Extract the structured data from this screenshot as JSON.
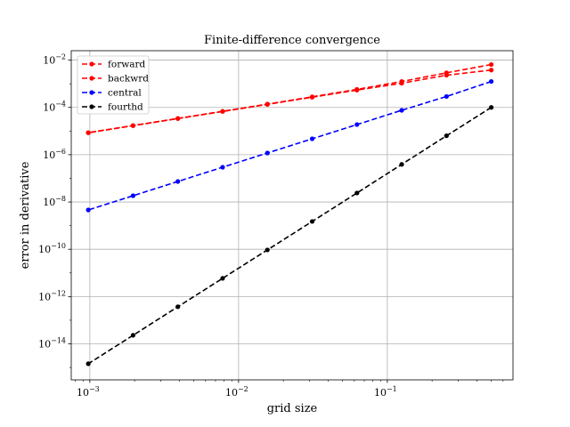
{
  "chart_data": {
    "type": "line",
    "title": "Finite-difference convergence",
    "xlabel": "grid size",
    "ylabel": "error in derivative",
    "xscale": "log",
    "yscale": "log",
    "xlim": [
      0.00075,
      0.7
    ],
    "ylim": [
      3e-16,
      0.025
    ],
    "grid": true,
    "legend_position": "upper-left",
    "x_ticks": [
      {
        "value": 0.001,
        "base": "10",
        "exp": "−3"
      },
      {
        "value": 0.01,
        "base": "10",
        "exp": "−2"
      },
      {
        "value": 0.1,
        "base": "10",
        "exp": "−1"
      }
    ],
    "y_ticks": [
      {
        "value": 1e-14,
        "base": "10",
        "exp": "−14"
      },
      {
        "value": 1e-12,
        "base": "10",
        "exp": "−12"
      },
      {
        "value": 1e-10,
        "base": "10",
        "exp": "−10"
      },
      {
        "value": 1e-08,
        "base": "10",
        "exp": "−8"
      },
      {
        "value": 1e-06,
        "base": "10",
        "exp": "−6"
      },
      {
        "value": 0.0001,
        "base": "10",
        "exp": "−4"
      },
      {
        "value": 0.01,
        "base": "10",
        "exp": "−2"
      }
    ],
    "x": [
      0.5,
      0.25,
      0.125,
      0.0625,
      0.03125,
      0.015625,
      0.0078125,
      0.00390625,
      0.001953125,
      0.0009765625
    ],
    "series": [
      {
        "name": "forward",
        "color": "#ff0000",
        "values": [
          0.0065,
          0.0029,
          0.00125,
          0.00058,
          0.00028,
          0.000138,
          6.85e-05,
          3.42e-05,
          1.71e-05,
          8.6e-06
        ]
      },
      {
        "name": "backwrd",
        "color": "#ff0000",
        "values": [
          0.0038,
          0.0023,
          0.00105,
          0.00054,
          0.00027,
          0.000134,
          6.72e-05,
          3.36e-05,
          1.69e-05,
          8.4e-06
        ]
      },
      {
        "name": "central",
        "color": "#0000ff",
        "values": [
          0.00125,
          0.00029,
          7.55e-05,
          1.88e-05,
          4.7e-06,
          1.18e-06,
          2.95e-07,
          7.36e-08,
          1.84e-08,
          4.6e-09
        ]
      },
      {
        "name": "fourthd",
        "color": "#000000",
        "values": [
          0.0001,
          6.3e-06,
          3.9e-07,
          2.4e-08,
          1.5e-09,
          9.4e-11,
          5.9e-12,
          3.7e-13,
          2.3e-14,
          1.44e-15
        ]
      }
    ]
  }
}
